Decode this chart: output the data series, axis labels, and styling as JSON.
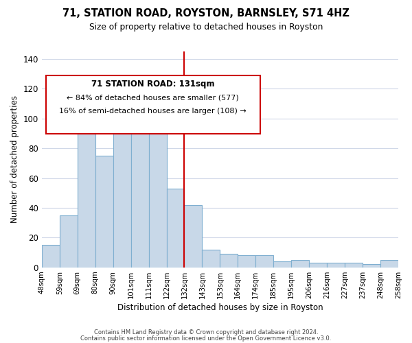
{
  "title": "71, STATION ROAD, ROYSTON, BARNSLEY, S71 4HZ",
  "subtitle": "Size of property relative to detached houses in Royston",
  "xlabel": "Distribution of detached houses by size in Royston",
  "ylabel": "Number of detached properties",
  "bar_labels": [
    "48sqm",
    "59sqm",
    "69sqm",
    "80sqm",
    "90sqm",
    "101sqm",
    "111sqm",
    "122sqm",
    "132sqm",
    "143sqm",
    "153sqm",
    "164sqm",
    "174sqm",
    "185sqm",
    "195sqm",
    "206sqm",
    "216sqm",
    "227sqm",
    "237sqm",
    "248sqm",
    "258sqm"
  ],
  "bar_values": [
    15,
    35,
    93,
    75,
    106,
    113,
    100,
    53,
    42,
    12,
    9,
    8,
    8,
    4,
    5,
    3,
    3,
    3,
    2,
    5
  ],
  "bar_color": "#c8d8e8",
  "bar_edge_color": "#7fafd0",
  "vline_color": "#cc0000",
  "vline_pos": 8.0,
  "ylim": [
    0,
    145
  ],
  "yticks": [
    0,
    20,
    40,
    60,
    80,
    100,
    120,
    140
  ],
  "annotation_title": "71 STATION ROAD: 131sqm",
  "annotation_line1": "← 84% of detached houses are smaller (577)",
  "annotation_line2": "16% of semi-detached houses are larger (108) →",
  "annotation_box_color": "#ffffff",
  "annotation_box_edge": "#cc0000",
  "footer1": "Contains HM Land Registry data © Crown copyright and database right 2024.",
  "footer2": "Contains public sector information licensed under the Open Government Licence v3.0.",
  "background_color": "#ffffff",
  "grid_color": "#d0d8e8"
}
